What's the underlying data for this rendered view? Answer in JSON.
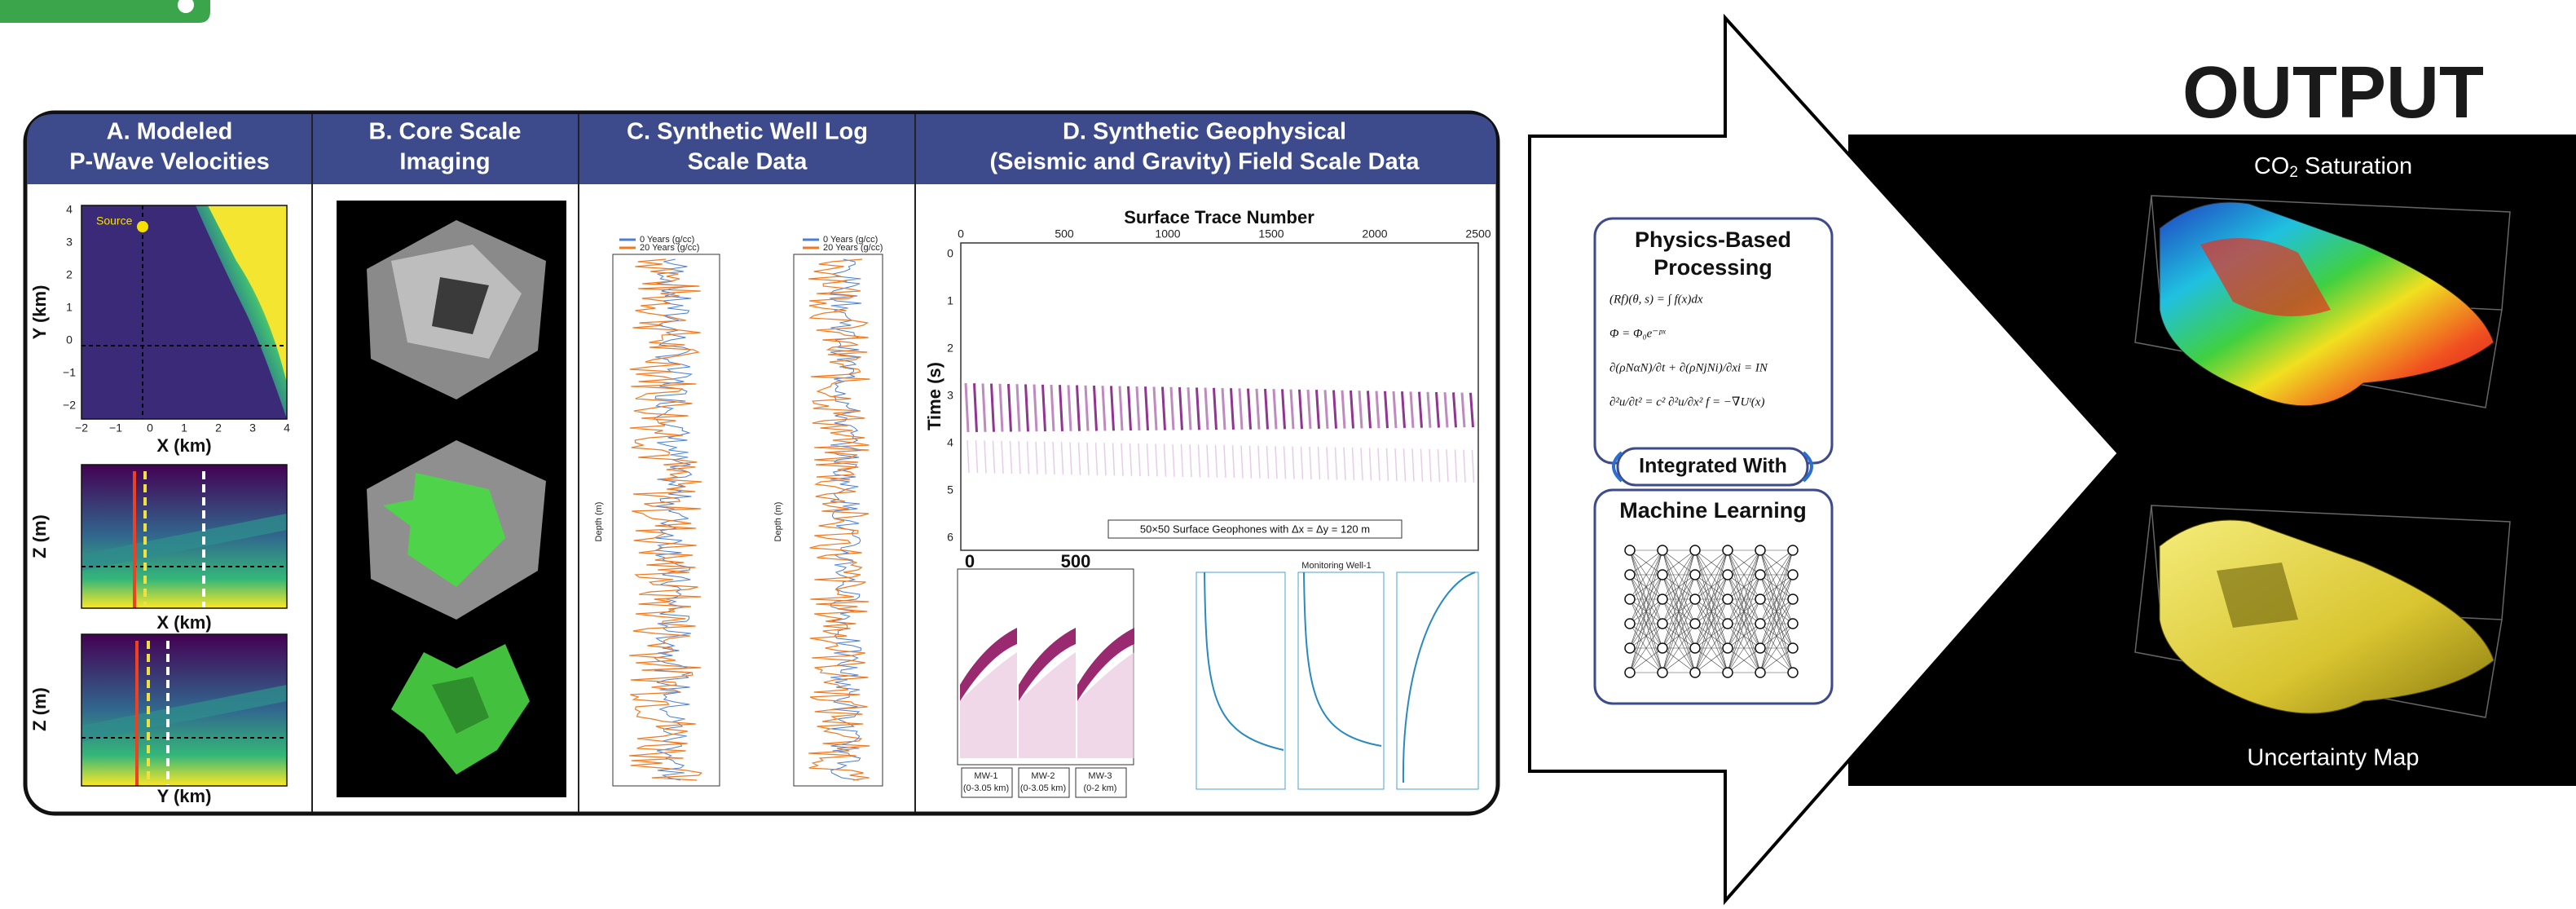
{
  "panels": [
    {
      "title": [
        "A. Modeled",
        "P-Wave Velocities"
      ],
      "source_label": "Source",
      "plot1": {
        "y_label": "Y (km)",
        "x_label": "X (km)",
        "yticks": [
          "4",
          "3",
          "2",
          "1",
          "0",
          "−1",
          "−2"
        ],
        "xticks": [
          "−2",
          "−1",
          "0",
          "1",
          "2",
          "3",
          "4"
        ]
      },
      "plot2": {
        "y_label": "Z (m)",
        "x_label": "X (km)"
      },
      "plot3": {
        "y_label": "Z (m)",
        "x_label": "Y (km)"
      }
    },
    {
      "title": [
        "B. Core Scale",
        "Imaging"
      ]
    },
    {
      "title": [
        "C. Synthetic Well Log",
        "Scale Data"
      ],
      "legend": [
        "0 Years (g/cc)",
        "20 Years (g/cc)"
      ],
      "y_label": "Depth (m)"
    },
    {
      "title": [
        "D. Synthetic Geophysical",
        "(Seismic and Gravity) Field Scale Data"
      ],
      "seismic": {
        "x_label": "Surface Trace Number",
        "y_label": "Time (s)",
        "xticks": [
          "0",
          "500",
          "1000",
          "1500",
          "2000",
          "2500"
        ],
        "yticks": [
          "0",
          "1",
          "2",
          "3",
          "4",
          "5",
          "6"
        ],
        "caption": "50×50 Surface Geophones with Δx = Δy = 120 m"
      },
      "gather": {
        "ticks": [
          "0",
          "500"
        ],
        "wells": [
          [
            "MW-1",
            "(0-3.05 km)"
          ],
          [
            "MW-2",
            "(0-3.05 km)"
          ],
          [
            "MW-3",
            "(0-2 km)"
          ]
        ]
      },
      "wells_title": "Monitoring Well-1"
    }
  ],
  "output": {
    "title": "OUTPUT",
    "map1_title": [
      "CO",
      "2",
      " Saturation"
    ],
    "map2_title": "Uncertainty Map"
  },
  "physics_box": {
    "title": [
      "Physics-Based",
      "Processing"
    ],
    "equations": [
      "(Rf)(θ, s) = ∫ f(x)dx",
      "Φ = Φ₀e⁻ᵖˣ",
      "∂(ρNαN)/∂t + ∂(ρNjNi)/∂xi = IN",
      "∂²u/∂t² = c² ∂²u/∂x²    f = −∇Uᵗ(x)"
    ]
  },
  "integration_label": "Integrated With",
  "ml_box": {
    "title": "Machine Learning"
  }
}
